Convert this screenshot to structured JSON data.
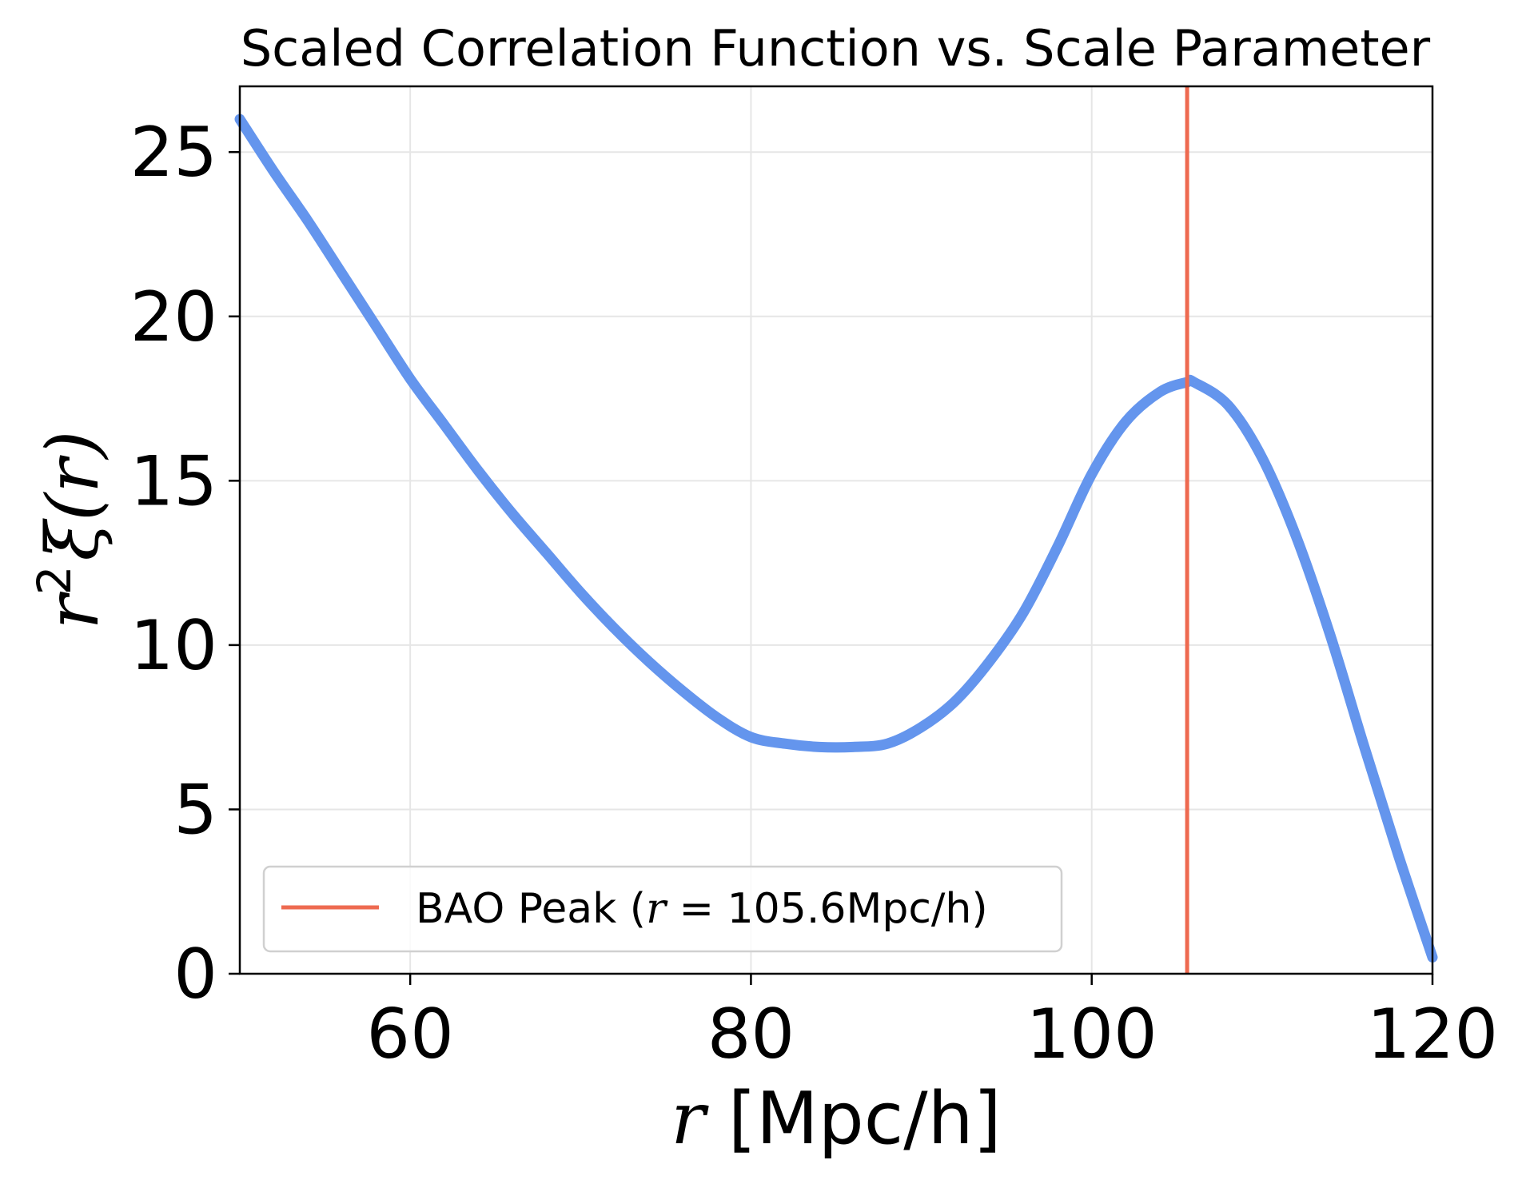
{
  "chart_data": {
    "type": "line",
    "title": "Scaled Correlation Function vs. Scale Parameter",
    "xlabel": {
      "var": "r",
      "rest": " [Mpc/h]"
    },
    "ylabel": {
      "base": "r",
      "sup": "2",
      "func": "ξ(r)"
    },
    "xlim": [
      50,
      120
    ],
    "ylim": [
      0,
      27
    ],
    "xticks": [
      60,
      80,
      100,
      120
    ],
    "yticks": [
      0,
      5,
      10,
      15,
      20,
      25
    ],
    "grid": true,
    "legend_position": "lower-left",
    "series": [
      {
        "color": "#6495ED",
        "x": [
          50,
          52,
          54,
          56,
          58,
          60,
          62,
          64,
          66,
          68,
          70,
          72,
          74,
          76,
          78,
          80,
          82,
          84,
          86,
          88,
          90,
          92,
          94,
          96,
          98,
          100,
          102,
          104,
          105.6,
          106,
          108,
          110,
          112,
          114,
          116,
          118,
          120
        ],
        "y": [
          26.0,
          24.4,
          22.9,
          21.3,
          19.7,
          18.1,
          16.7,
          15.3,
          14.0,
          12.8,
          11.6,
          10.5,
          9.5,
          8.6,
          7.8,
          7.2,
          7.0,
          6.9,
          6.9,
          7.0,
          7.5,
          8.3,
          9.5,
          11.0,
          13.0,
          15.2,
          16.8,
          17.7,
          18.0,
          18.0,
          17.3,
          15.7,
          13.3,
          10.3,
          6.9,
          3.6,
          0.5
        ]
      }
    ],
    "vline": {
      "x": 105.6,
      "color": "#EE6A50",
      "label_prefix": "BAO Peak (",
      "label_var": "r",
      "label_suffix": " = 105.6Mpc/h)"
    }
  }
}
